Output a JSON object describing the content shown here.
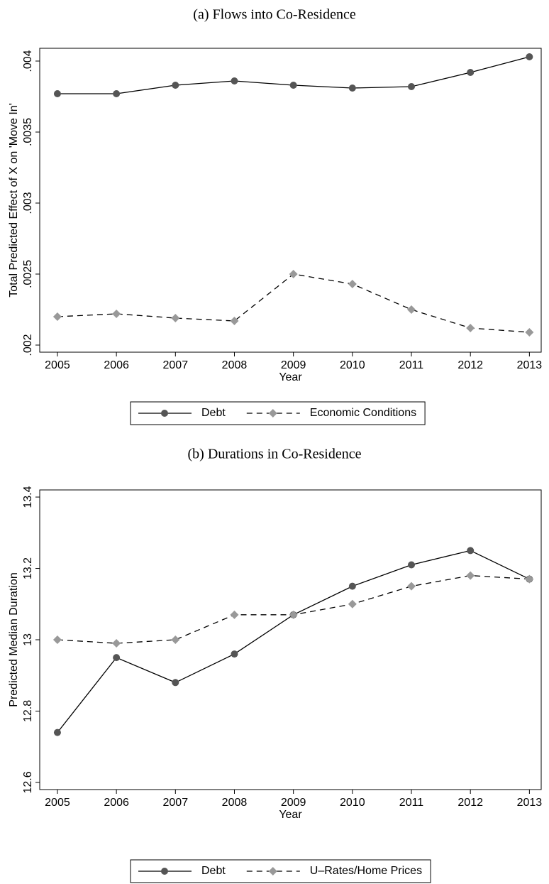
{
  "chart_data": [
    {
      "type": "line",
      "title": "(a) Flows into Co-Residence",
      "x_label": "Year",
      "y_label": "Total Predicted Effect of X on 'Move In'",
      "x": [
        2005,
        2006,
        2007,
        2008,
        2009,
        2010,
        2011,
        2012,
        2013
      ],
      "xlim": [
        2004.7,
        2013.2
      ],
      "xticks": [
        2005,
        2006,
        2007,
        2008,
        2009,
        2010,
        2011,
        2012,
        2013
      ],
      "ylim": [
        0.00195,
        0.00409
      ],
      "yticks": [
        {
          "value": 0.002,
          "label": ".002"
        },
        {
          "value": 0.0025,
          "label": ".0025"
        },
        {
          "value": 0.003,
          "label": ".003"
        },
        {
          "value": 0.0035,
          "label": ".0035"
        },
        {
          "value": 0.004,
          "label": ".004"
        }
      ],
      "legend": "bottom",
      "series": [
        {
          "name": "Debt",
          "color": "#555555",
          "marker": "circle",
          "linestyle": "solid",
          "values": [
            0.00377,
            0.00377,
            0.00383,
            0.00386,
            0.00383,
            0.00381,
            0.00382,
            0.00392,
            0.00403
          ]
        },
        {
          "name": "Economic Conditions",
          "color": "#999999",
          "marker": "diamond",
          "linestyle": "dashed",
          "values": [
            0.0022,
            0.00222,
            0.00219,
            0.00217,
            0.0025,
            0.00243,
            0.00225,
            0.00212,
            0.00209
          ]
        }
      ]
    },
    {
      "type": "line",
      "title": "(b) Durations in Co-Residence",
      "x_label": "Year",
      "y_label": "Predicted Median Duration",
      "x": [
        2005,
        2006,
        2007,
        2008,
        2009,
        2010,
        2011,
        2012,
        2013
      ],
      "xlim": [
        2004.7,
        2013.2
      ],
      "xticks": [
        2005,
        2006,
        2007,
        2008,
        2009,
        2010,
        2011,
        2012,
        2013
      ],
      "ylim": [
        12.58,
        13.42
      ],
      "yticks": [
        12.6,
        12.8,
        13,
        13.2,
        13.4
      ],
      "legend": "bottom",
      "series": [
        {
          "name": "Debt",
          "color": "#555555",
          "marker": "circle",
          "linestyle": "solid",
          "values": [
            12.74,
            12.95,
            12.88,
            12.96,
            13.07,
            13.15,
            13.21,
            13.25,
            13.17
          ]
        },
        {
          "name": "U–Rates/Home Prices",
          "color": "#999999",
          "marker": "diamond",
          "linestyle": "dashed",
          "values": [
            13.0,
            12.99,
            13.0,
            13.07,
            13.07,
            13.1,
            13.15,
            13.18,
            13.17
          ]
        }
      ]
    }
  ]
}
